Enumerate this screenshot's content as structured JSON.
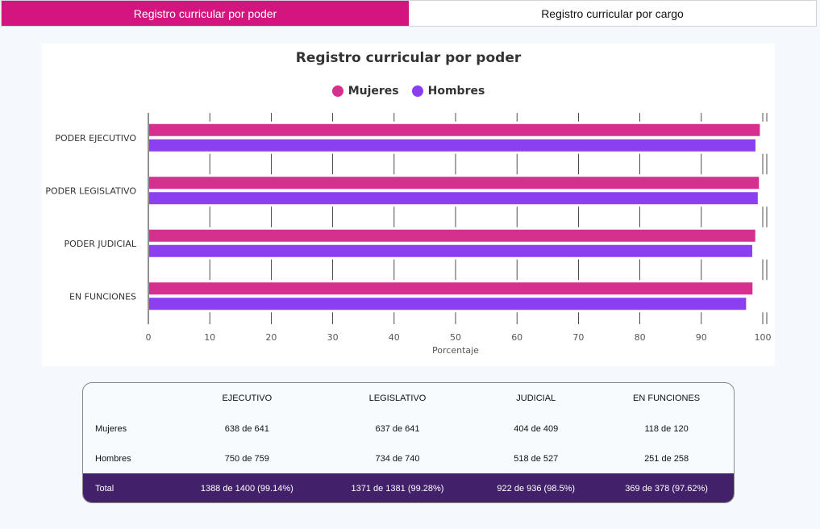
{
  "tabs": [
    {
      "label": "Registro curricular por poder"
    },
    {
      "label": "Registro curricular por cargo"
    }
  ],
  "colors": {
    "mujeres": "#d6308f",
    "hombres": "#8c3ff0",
    "tab_active": "#d5157f",
    "total_row": "#42206a"
  },
  "chart_data": {
    "type": "bar",
    "orientation": "horizontal",
    "title": "Registro curricular por poder",
    "xlabel": "Porcentaje",
    "ylabel": "",
    "categories": [
      "PODER EJECUTIVO",
      "PODER LEGISLATIVO",
      "PODER JUDICIAL",
      "EN FUNCIONES"
    ],
    "series": [
      {
        "name": "Mujeres",
        "values": [
          99.53,
          99.38,
          98.78,
          98.33
        ]
      },
      {
        "name": "Hombres",
        "values": [
          98.81,
          99.19,
          98.29,
          97.29
        ]
      }
    ],
    "xlim": [
      0,
      100
    ],
    "xticks": [
      "0",
      "10",
      "20",
      "30",
      "40",
      "50",
      "60",
      "70",
      "80",
      "90",
      "100"
    ],
    "grid": true,
    "legend": "top-center"
  },
  "table": {
    "headers": [
      "",
      "EJECUTIVO",
      "LEGISLATIVO",
      "JUDICIAL",
      "EN FUNCIONES"
    ],
    "rows": [
      {
        "label": "Mujeres",
        "cells": [
          "638 de 641",
          "637 de 641",
          "404 de 409",
          "118 de 120"
        ]
      },
      {
        "label": "Hombres",
        "cells": [
          "750 de 759",
          "734 de 740",
          "518 de 527",
          "251 de 258"
        ]
      },
      {
        "label": "Total",
        "cells": [
          "1388 de 1400 (99.14%)",
          "1371 de 1381 (99.28%)",
          "922 de 936 (98.5%)",
          "369 de 378 (97.62%)"
        ]
      }
    ]
  }
}
